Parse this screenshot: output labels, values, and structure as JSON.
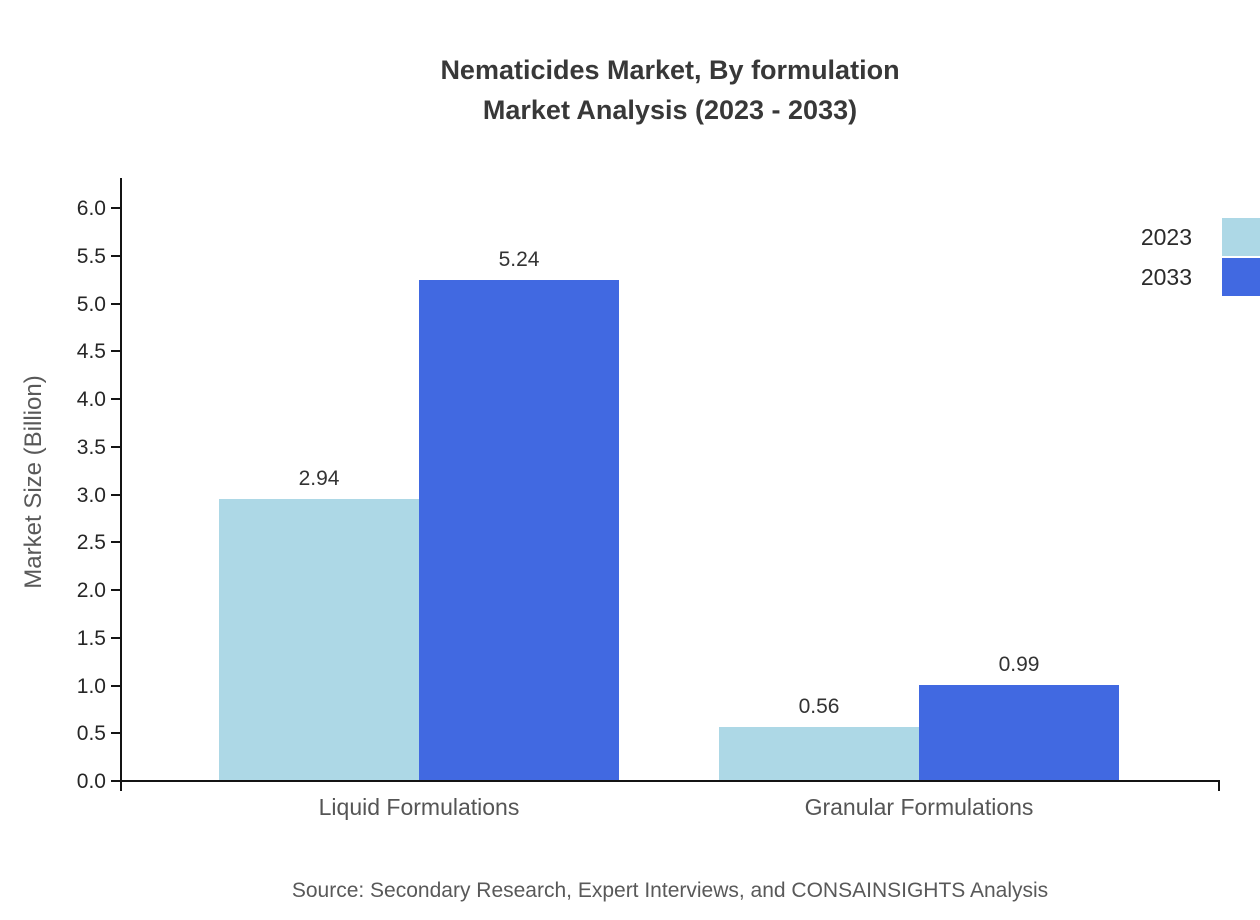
{
  "chart_data": {
    "type": "bar",
    "title": "Nematicides Market, By formulation",
    "subtitle": "Market Analysis (2023 - 2033)",
    "categories": [
      "Liquid Formulations",
      "Granular Formulations"
    ],
    "series": [
      {
        "name": "2023",
        "color": "#add8e6",
        "values": [
          2.94,
          0.56
        ]
      },
      {
        "name": "2033",
        "color": "#4169e1",
        "values": [
          5.24,
          0.99
        ]
      }
    ],
    "ylabel": "Market Size (Billion)",
    "ylim": [
      0,
      6.0
    ],
    "yticks": [
      "0.0",
      "0.5",
      "1.0",
      "1.5",
      "2.0",
      "2.5",
      "3.0",
      "3.5",
      "4.0",
      "4.5",
      "5.0",
      "5.5",
      "6.0"
    ],
    "grid": false,
    "legend_position": "top-right"
  },
  "footer": {
    "source": "Source: Secondary Research, Expert Interviews, and CONSAINSIGHTS Analysis"
  }
}
